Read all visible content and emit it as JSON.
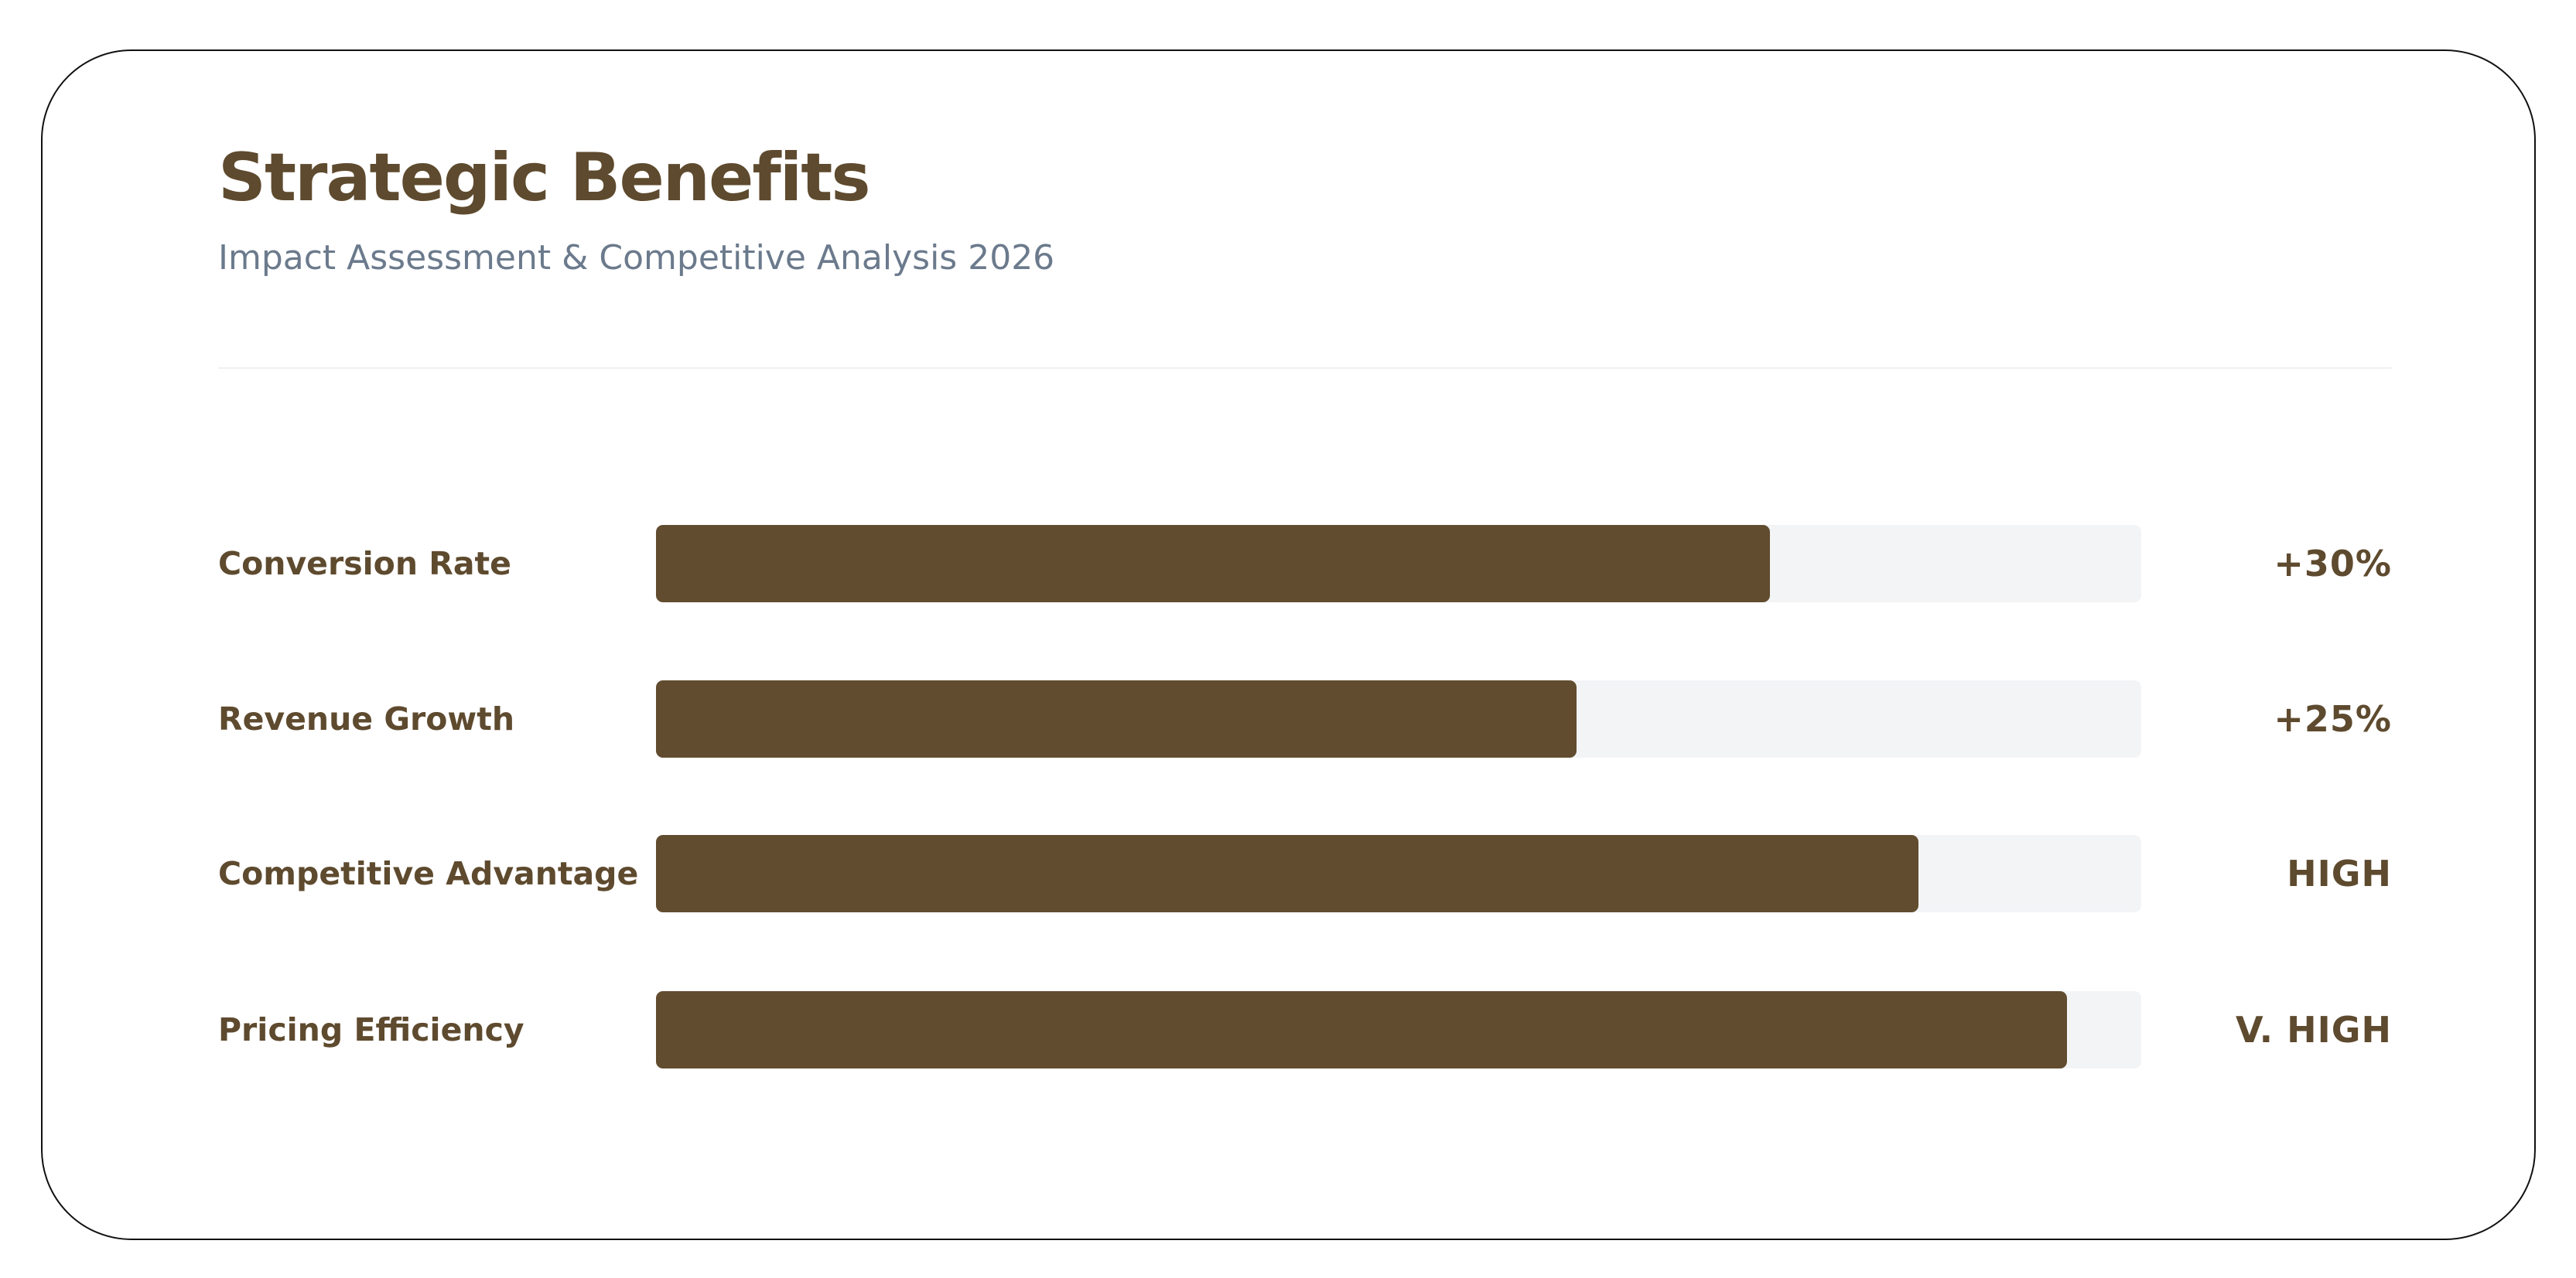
{
  "header": {
    "title": "Strategic Benefits",
    "subtitle": "Impact Assessment & Competitive Analysis 2026"
  },
  "bar_color": "#614c2f",
  "xlim": [
    0,
    100
  ],
  "rows": [
    {
      "label": "Conversion Rate",
      "fill": 75,
      "result": "+30%"
    },
    {
      "label": "Revenue Growth",
      "fill": 62,
      "result": "+25%"
    },
    {
      "label": "Competitive Advantage",
      "fill": 85,
      "result": "HIGH"
    },
    {
      "label": "Pricing Efficiency",
      "fill": 95,
      "result": "V. HIGH"
    }
  ]
}
